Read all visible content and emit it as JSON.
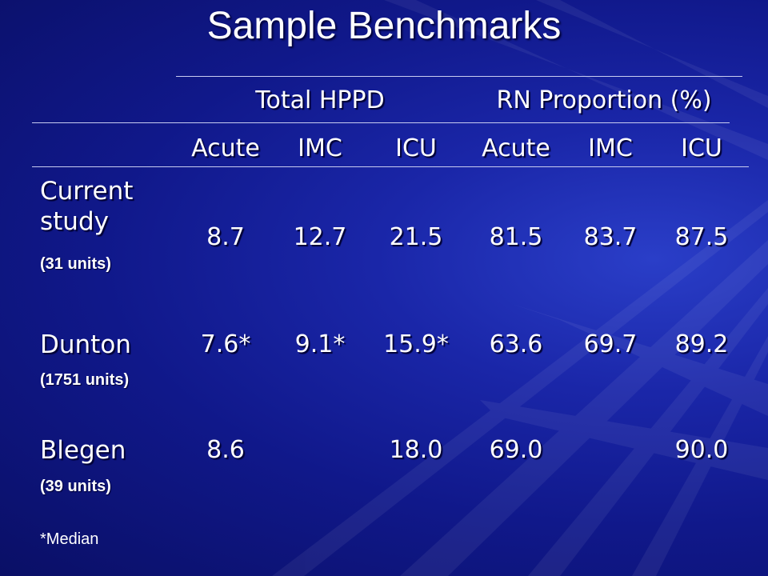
{
  "slide": {
    "title": "Sample Benchmarks"
  },
  "table": {
    "groups": [
      "Total HPPD",
      "RN Proportion (%)"
    ],
    "subheaders": [
      "Acute",
      "IMC",
      "ICU",
      "Acute",
      "IMC",
      "ICU"
    ],
    "rows": [
      {
        "label": "Current study",
        "units": "(31 units)",
        "values": [
          "8.7",
          "12.7",
          "21.5",
          "81.5",
          "83.7",
          "87.5"
        ]
      },
      {
        "label": "Dunton",
        "units": "(1751 units)",
        "values": [
          "7.6*",
          "9.1*",
          "15.9*",
          "63.6",
          "69.7",
          "89.2"
        ]
      },
      {
        "label": "Blegen",
        "units": "(39 units)",
        "values": [
          "8.6",
          "",
          "18.0",
          "69.0",
          "",
          "90.0"
        ]
      }
    ]
  },
  "footnote": "*Median"
}
